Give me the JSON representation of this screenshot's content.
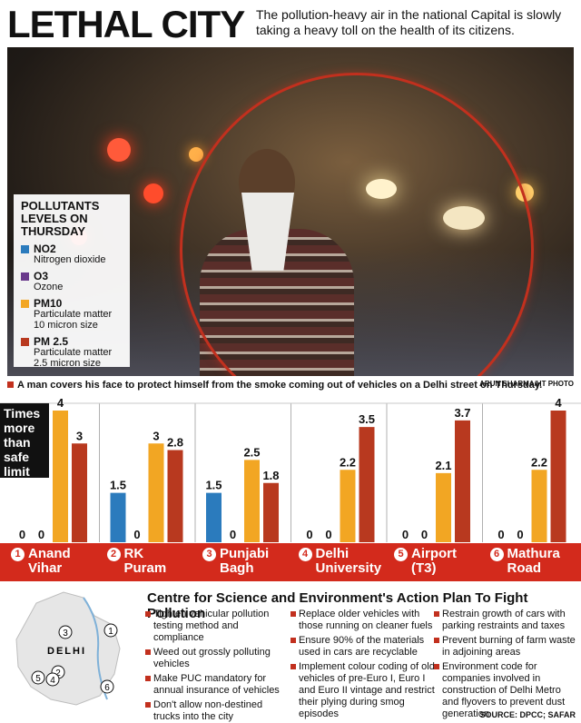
{
  "header": {
    "title": "LETHAL CITY",
    "deck": "The pollution-heavy air in the national Capital is slowly taking a heavy toll on the health of its citizens."
  },
  "legend": {
    "title": "POLLUTANTS LEVELS ON THURSDAY",
    "items": [
      {
        "code": "NO2",
        "desc": "Nitrogen dioxide",
        "color": "#2b7bbd"
      },
      {
        "code": "O3",
        "desc": "Ozone",
        "color": "#6a3a8c"
      },
      {
        "code": "PM10",
        "desc": "Particulate matter 10 micron size",
        "color": "#f2a623"
      },
      {
        "code": "PM 2.5",
        "desc": "Particulate matter 2.5 micron size",
        "color": "#b8391f"
      }
    ]
  },
  "caption": {
    "text": "A man covers his face to protect himself from the smoke coming out of vehicles on a Delhi street on Thursday.",
    "credit": "ARUN SHARMA/HT PHOTO"
  },
  "chart_data": {
    "type": "bar",
    "ylabel": "Times more than safe limit",
    "ylim": [
      0,
      4
    ],
    "categories": [
      {
        "num": "1",
        "line1": "Anand",
        "line2": "Vihar"
      },
      {
        "num": "2",
        "line1": "RK",
        "line2": "Puram"
      },
      {
        "num": "3",
        "line1": "Punjabi",
        "line2": "Bagh"
      },
      {
        "num": "4",
        "line1": "Delhi",
        "line2": "University"
      },
      {
        "num": "5",
        "line1": "Airport",
        "line2": "(T3)"
      },
      {
        "num": "6",
        "line1": "Mathura",
        "line2": "Road"
      }
    ],
    "series": [
      {
        "name": "NO2",
        "color": "#2b7bbd",
        "values": [
          0,
          1.5,
          1.5,
          0,
          0,
          0
        ]
      },
      {
        "name": "O3",
        "color": "#6a3a8c",
        "values": [
          0,
          0,
          0,
          0,
          0,
          0
        ]
      },
      {
        "name": "PM10",
        "color": "#f2a623",
        "values": [
          4,
          3,
          2.5,
          2.2,
          2.1,
          2.2
        ]
      },
      {
        "name": "PM 2.5",
        "color": "#b8391f",
        "values": [
          3,
          2.8,
          1.8,
          3.5,
          3.7,
          4
        ]
      }
    ],
    "labels": [
      [
        "0",
        "0",
        "4",
        "3"
      ],
      [
        "1.5",
        "0",
        "3",
        "2.8"
      ],
      [
        "1.5",
        "0",
        "2.5",
        "1.8"
      ],
      [
        "0",
        "0",
        "2.2",
        "3.5"
      ],
      [
        "0",
        "0",
        "2.1",
        "3.7"
      ],
      [
        "0",
        "0",
        "2.2",
        "4"
      ]
    ]
  },
  "plan": {
    "title": "Centre for Science and Environment's Action Plan To Fight Pollution",
    "col1": [
      "Tighten vehicular pollution testing method and compliance",
      "Weed out grossly polluting vehicles",
      "Make PUC mandatory for annual insurance of vehicles",
      "Don't allow non-destined trucks into the city"
    ],
    "col2": [
      "Replace older vehicles with those running on cleaner fuels",
      "Ensure 90% of the materials used in cars are recyclable",
      "Implement colour coding of old vehicles of pre-Euro I, Euro I and Euro II vintage and restrict their plying during smog episodes"
    ],
    "col3": [
      "Restrain growth of cars with parking restraints and taxes",
      "Prevent burning of farm waste in adjoining areas",
      "Environment code for companies involved in construction of Delhi Metro and flyovers to prevent dust generation"
    ]
  },
  "map": {
    "label": "DELHI",
    "markers": [
      "1",
      "2",
      "3",
      "4",
      "5",
      "6"
    ]
  },
  "source": "SOURCE: DPCC; SAFAR"
}
